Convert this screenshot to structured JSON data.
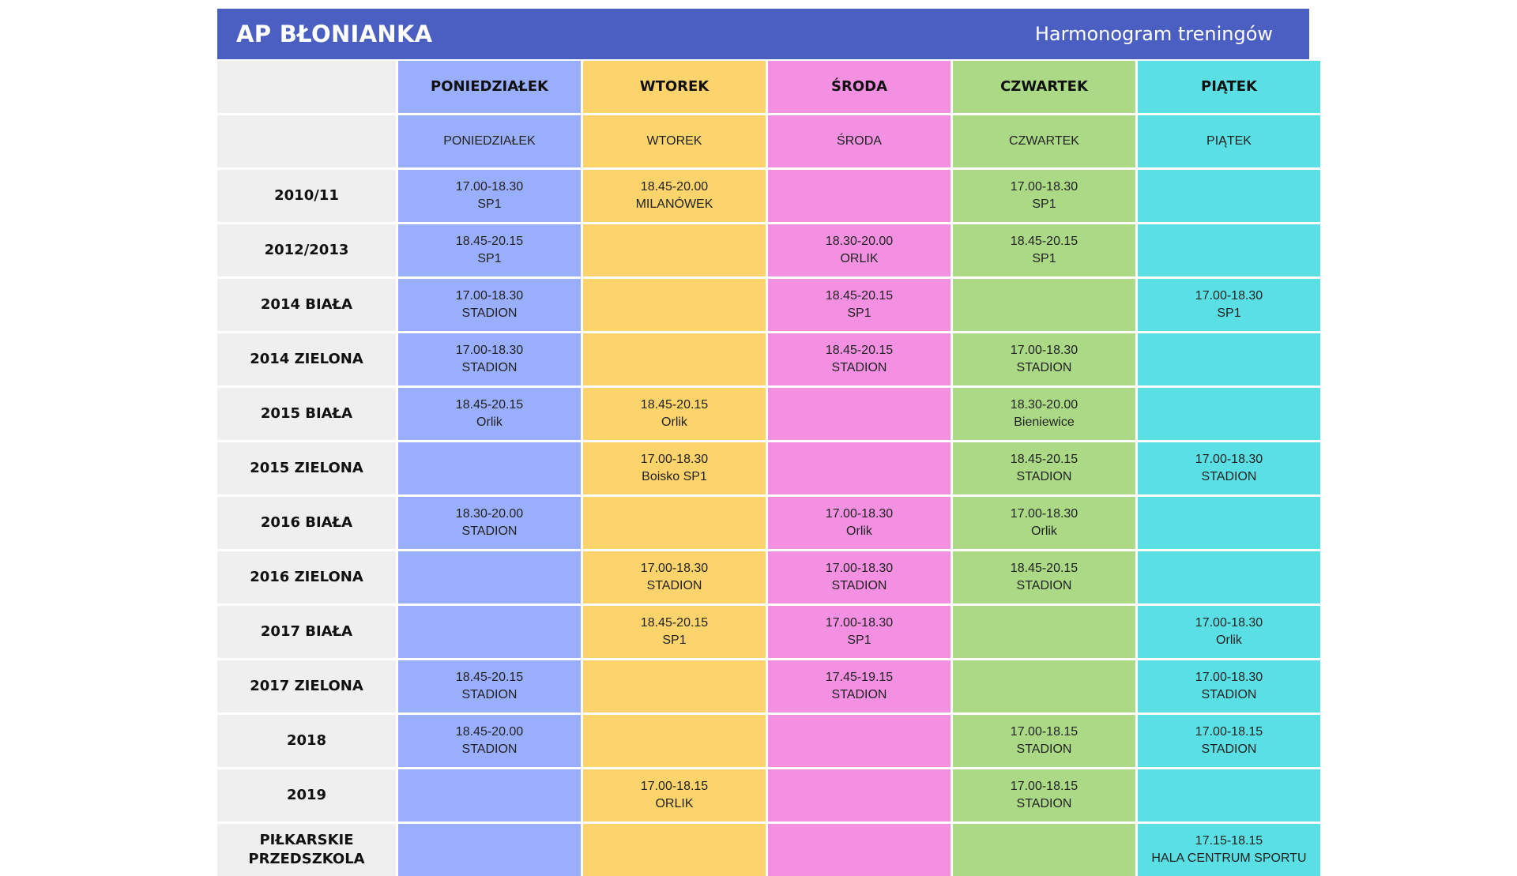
{
  "header": {
    "brand": "AP BŁONIANKA",
    "subtitle": "Harmonogram treningów"
  },
  "days": [
    {
      "head": "PONIEDZIAŁEK",
      "sub": "PONIEDZIAŁEK",
      "color": "#9aaefe"
    },
    {
      "head": "WTOREK",
      "sub": "WTOREK",
      "color": "#fdd36b"
    },
    {
      "head": "ŚRODA",
      "sub": "ŚRODA",
      "color": "#f390e2"
    },
    {
      "head": "CZWARTEK",
      "sub": "CZWARTEK",
      "color": "#abd985"
    },
    {
      "head": "PIĄTEK",
      "sub": "PIĄTEK",
      "color": "#5ae0e4"
    }
  ],
  "rows": [
    {
      "label": "2010/11",
      "cells": [
        {
          "time": "17.00-18.30",
          "place": "SP1"
        },
        {
          "time": "18.45-20.00",
          "place": "MILANÓWEK"
        },
        {
          "time": "",
          "place": ""
        },
        {
          "time": "17.00-18.30",
          "place": "SP1"
        },
        {
          "time": "",
          "place": ""
        }
      ]
    },
    {
      "label": "2012/2013",
      "cells": [
        {
          "time": "18.45-20.15",
          "place": "SP1"
        },
        {
          "time": "",
          "place": ""
        },
        {
          "time": "18.30-20.00",
          "place": "ORLIK"
        },
        {
          "time": "18.45-20.15",
          "place": "SP1"
        },
        {
          "time": "",
          "place": ""
        }
      ]
    },
    {
      "label": "2014 BIAŁA",
      "cells": [
        {
          "time": "17.00-18.30",
          "place": "STADION"
        },
        {
          "time": "",
          "place": ""
        },
        {
          "time": "18.45-20.15",
          "place": "SP1"
        },
        {
          "time": "",
          "place": ""
        },
        {
          "time": "17.00-18.30",
          "place": "SP1"
        }
      ]
    },
    {
      "label": "2014 ZIELONA",
      "cells": [
        {
          "time": "17.00-18.30",
          "place": "STADION"
        },
        {
          "time": "",
          "place": ""
        },
        {
          "time": "18.45-20.15",
          "place": "STADION"
        },
        {
          "time": "17.00-18.30",
          "place": "STADION"
        },
        {
          "time": "",
          "place": ""
        }
      ]
    },
    {
      "label": "2015 BIAŁA",
      "cells": [
        {
          "time": "18.45-20.15",
          "place": "Orlik"
        },
        {
          "time": "18.45-20.15",
          "place": "Orlik"
        },
        {
          "time": "",
          "place": ""
        },
        {
          "time": "18.30-20.00",
          "place": "Bieniewice"
        },
        {
          "time": "",
          "place": ""
        }
      ]
    },
    {
      "label": "2015 ZIELONA",
      "cells": [
        {
          "time": "",
          "place": ""
        },
        {
          "time": "17.00-18.30",
          "place": "Boisko SP1"
        },
        {
          "time": "",
          "place": ""
        },
        {
          "time": "18.45-20.15",
          "place": "STADION"
        },
        {
          "time": "17.00-18.30",
          "place": "STADION"
        }
      ]
    },
    {
      "label": "2016 BIAŁA",
      "cells": [
        {
          "time": "18.30-20.00",
          "place": "STADION"
        },
        {
          "time": "",
          "place": ""
        },
        {
          "time": "17.00-18.30",
          "place": "Orlik"
        },
        {
          "time": "17.00-18.30",
          "place": "Orlik"
        },
        {
          "time": "",
          "place": ""
        }
      ]
    },
    {
      "label": "2016 ZIELONA",
      "cells": [
        {
          "time": "",
          "place": ""
        },
        {
          "time": "17.00-18.30",
          "place": "STADION"
        },
        {
          "time": "17.00-18.30",
          "place": "STADION"
        },
        {
          "time": "18.45-20.15",
          "place": "STADION"
        },
        {
          "time": "",
          "place": ""
        }
      ]
    },
    {
      "label": "2017 BIAŁA",
      "cells": [
        {
          "time": "",
          "place": ""
        },
        {
          "time": "18.45-20.15",
          "place": "SP1"
        },
        {
          "time": "17.00-18.30",
          "place": "SP1"
        },
        {
          "time": "",
          "place": ""
        },
        {
          "time": "17.00-18.30",
          "place": "Orlik"
        }
      ]
    },
    {
      "label": "2017 ZIELONA",
      "cells": [
        {
          "time": "18.45-20.15",
          "place": "STADION"
        },
        {
          "time": "",
          "place": ""
        },
        {
          "time": "17.45-19.15",
          "place": "STADION"
        },
        {
          "time": "",
          "place": ""
        },
        {
          "time": "17.00-18.30",
          "place": "STADION"
        }
      ]
    },
    {
      "label": "2018",
      "cells": [
        {
          "time": "18.45-20.00",
          "place": "STADION"
        },
        {
          "time": "",
          "place": ""
        },
        {
          "time": "",
          "place": ""
        },
        {
          "time": "17.00-18.15",
          "place": "STADION"
        },
        {
          "time": "17.00-18.15",
          "place": "STADION"
        }
      ]
    },
    {
      "label": "2019",
      "cells": [
        {
          "time": "",
          "place": ""
        },
        {
          "time": "17.00-18.15",
          "place": "ORLIK"
        },
        {
          "time": "",
          "place": ""
        },
        {
          "time": "17.00-18.15",
          "place": "STADION"
        },
        {
          "time": "",
          "place": ""
        }
      ]
    },
    {
      "label": "PIŁKARSKIE PRZEDSZKOLA",
      "cells": [
        {
          "time": "",
          "place": ""
        },
        {
          "time": "",
          "place": ""
        },
        {
          "time": "",
          "place": ""
        },
        {
          "time": "",
          "place": ""
        },
        {
          "time": "17.15-18.15",
          "place": "HALA CENTRUM SPORTU"
        }
      ]
    }
  ]
}
